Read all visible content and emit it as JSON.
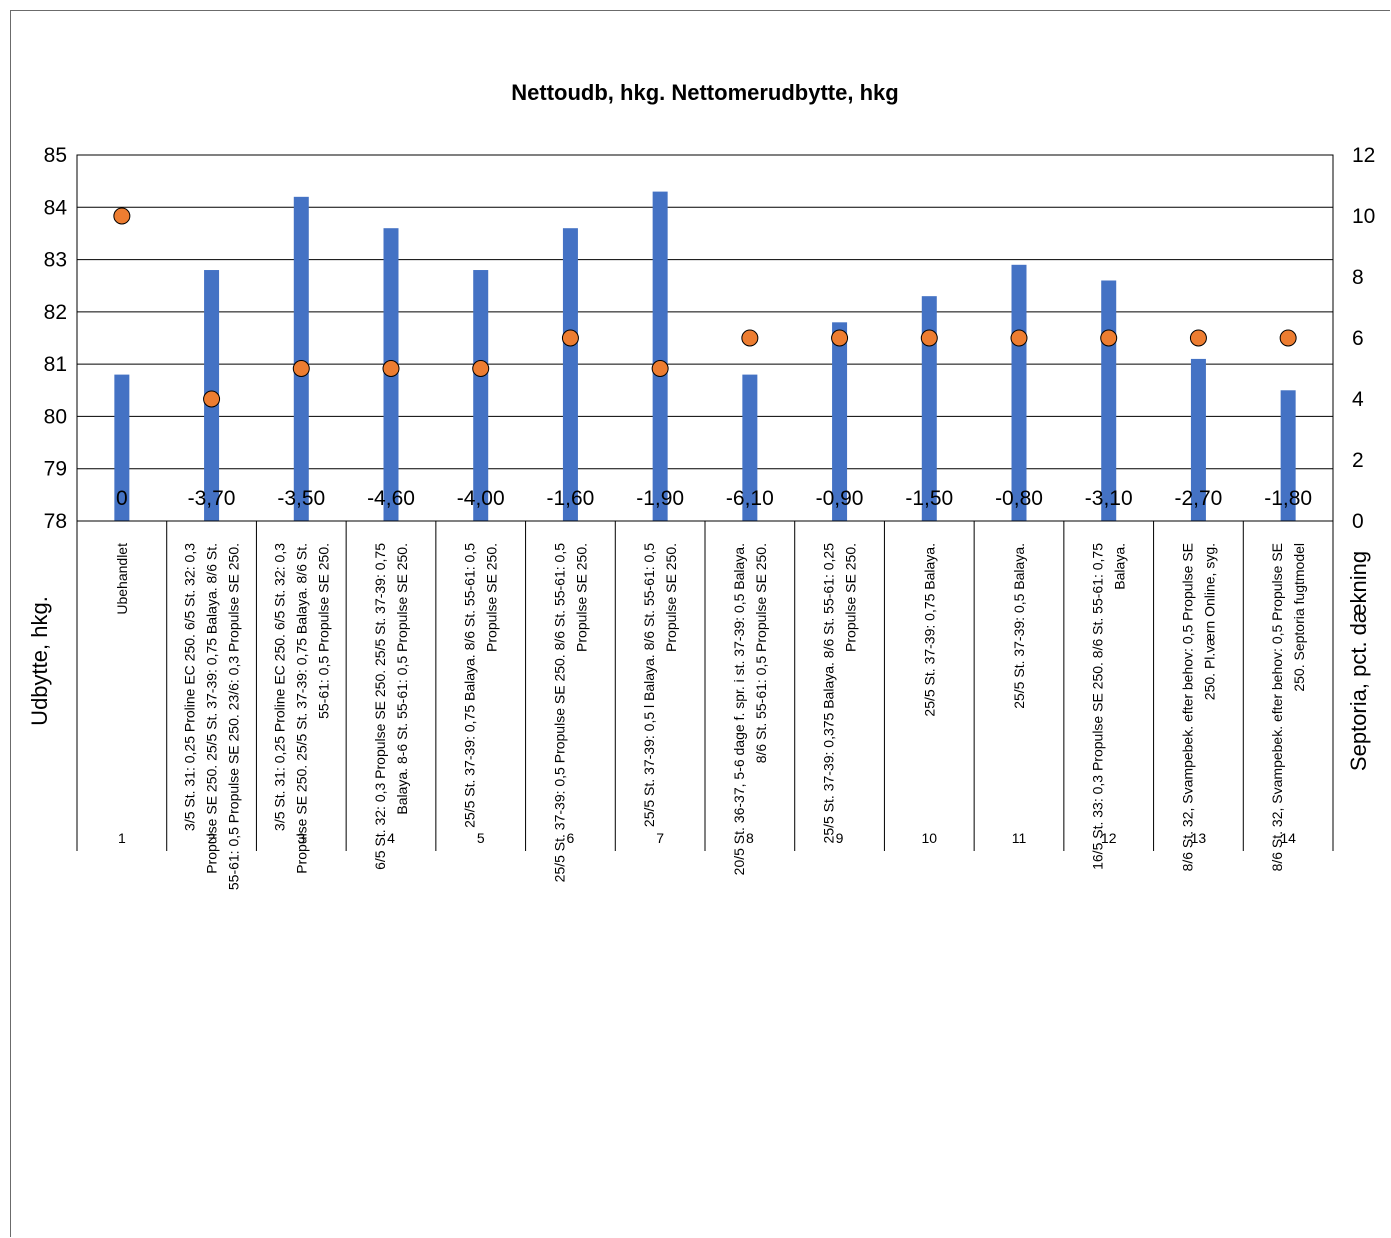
{
  "chart_data": {
    "type": "bar",
    "title": "Nettoudb, hkg. Nettomerudbytte, hkg",
    "ylabel": "Udbytte, hkg.",
    "y2label": "Septoria, pct. dækning",
    "ylim": [
      78,
      85
    ],
    "y2lim": [
      0,
      12
    ],
    "yticks": [
      "85",
      "84",
      "83",
      "82",
      "81",
      "80",
      "79",
      "78"
    ],
    "y2ticks": [
      "12",
      "10",
      "8",
      "6",
      "4",
      "2",
      "0"
    ],
    "categories": [
      "1",
      "2",
      "3",
      "4",
      "5",
      "6",
      "7",
      "8",
      "9",
      "10",
      "11",
      "12",
      "13",
      "14"
    ],
    "category_labels": [
      [
        "Ubehandlet"
      ],
      [
        "3/5 St. 31: 0,25 Proline EC 250. 6/5 St. 32: 0,3",
        "Propulse SE 250. 25/5 St. 37-39: 0,75 Balaya. 8/6 St.",
        "55-61: 0,5 Propulse SE 250. 23/6: 0,3 Propulse SE 250."
      ],
      [
        "3/5 St. 31: 0,25 Proline EC 250. 6/5 St. 32: 0,3",
        "Propulse SE 250. 25/5 St. 37-39: 0,75 Balaya. 8/6 St.",
        "55-61: 0,5 Propulse SE 250."
      ],
      [
        "6/5 St. 32: 0,3 Propulse SE 250. 25/5 St. 37-39: 0,75",
        "Balaya. 8-6 St. 55-61: 0,5 Propulse SE 250."
      ],
      [
        "25/5 St. 37-39: 0,75 Balaya. 8/6 St. 55-61: 0,5",
        "Propulse SE 250."
      ],
      [
        "25/5 St. 37-39: 0,5 Propulse SE 250. 8/6 St. 55-61: 0,5",
        "Propulse SE 250."
      ],
      [
        "25/5 St. 37-39: 0,5 l Balaya. 8/6 St. 55-61: 0,5",
        "Propulse SE 250."
      ],
      [
        "20/5 St. 36-37, 5-6 dage f. spr. i st. 37-39: 0,5 Balaya.",
        "8/6 St. 55-61: 0,5 Propulse SE 250."
      ],
      [
        "25/5 St. 37-39: 0,375 Balaya. 8/6 St. 55-61: 0,25",
        "Propulse SE 250."
      ],
      [
        "25/5 St. 37-39: 0,75 Balaya."
      ],
      [
        "25/5 St. 37-39: 0,5 Balaya."
      ],
      [
        "16/5 St. 33: 0,3 Propulse SE 250. 8/6 St. 55-61: 0,75",
        "Balaya."
      ],
      [
        "8/6 St. 32, Svampebek. efter behov: 0,5 Propulse SE",
        "250.  Pl.værn Online, syg."
      ],
      [
        "8/6 St. 32, Svampebek. efter behov: 0,5 Propulse SE",
        "250.  Septoria fugtmodel"
      ]
    ],
    "series": [
      {
        "values": [
          80.8,
          82.8,
          84.2,
          83.6,
          82.8,
          83.6,
          84.3,
          80.8,
          81.8,
          82.3,
          82.9,
          82.6,
          81.1,
          80.5
        ],
        "axis": "left",
        "color": "#4472C4"
      },
      {
        "values": [
          10,
          4,
          5,
          5,
          5,
          6,
          5,
          6,
          6,
          6,
          6,
          6,
          6,
          6
        ],
        "axis": "right",
        "color": "#ED7D31",
        "type": "scatter"
      }
    ],
    "data_labels": [
      "0",
      "-3,70",
      "-3,50",
      "-4,60",
      "-4,00",
      "-1,60",
      "-1,90",
      "-6,10",
      "-0,90",
      "-1,50",
      "-0,80",
      "-3,10",
      "-2,70",
      "-1,80"
    ],
    "grid": true,
    "legend": "none"
  }
}
